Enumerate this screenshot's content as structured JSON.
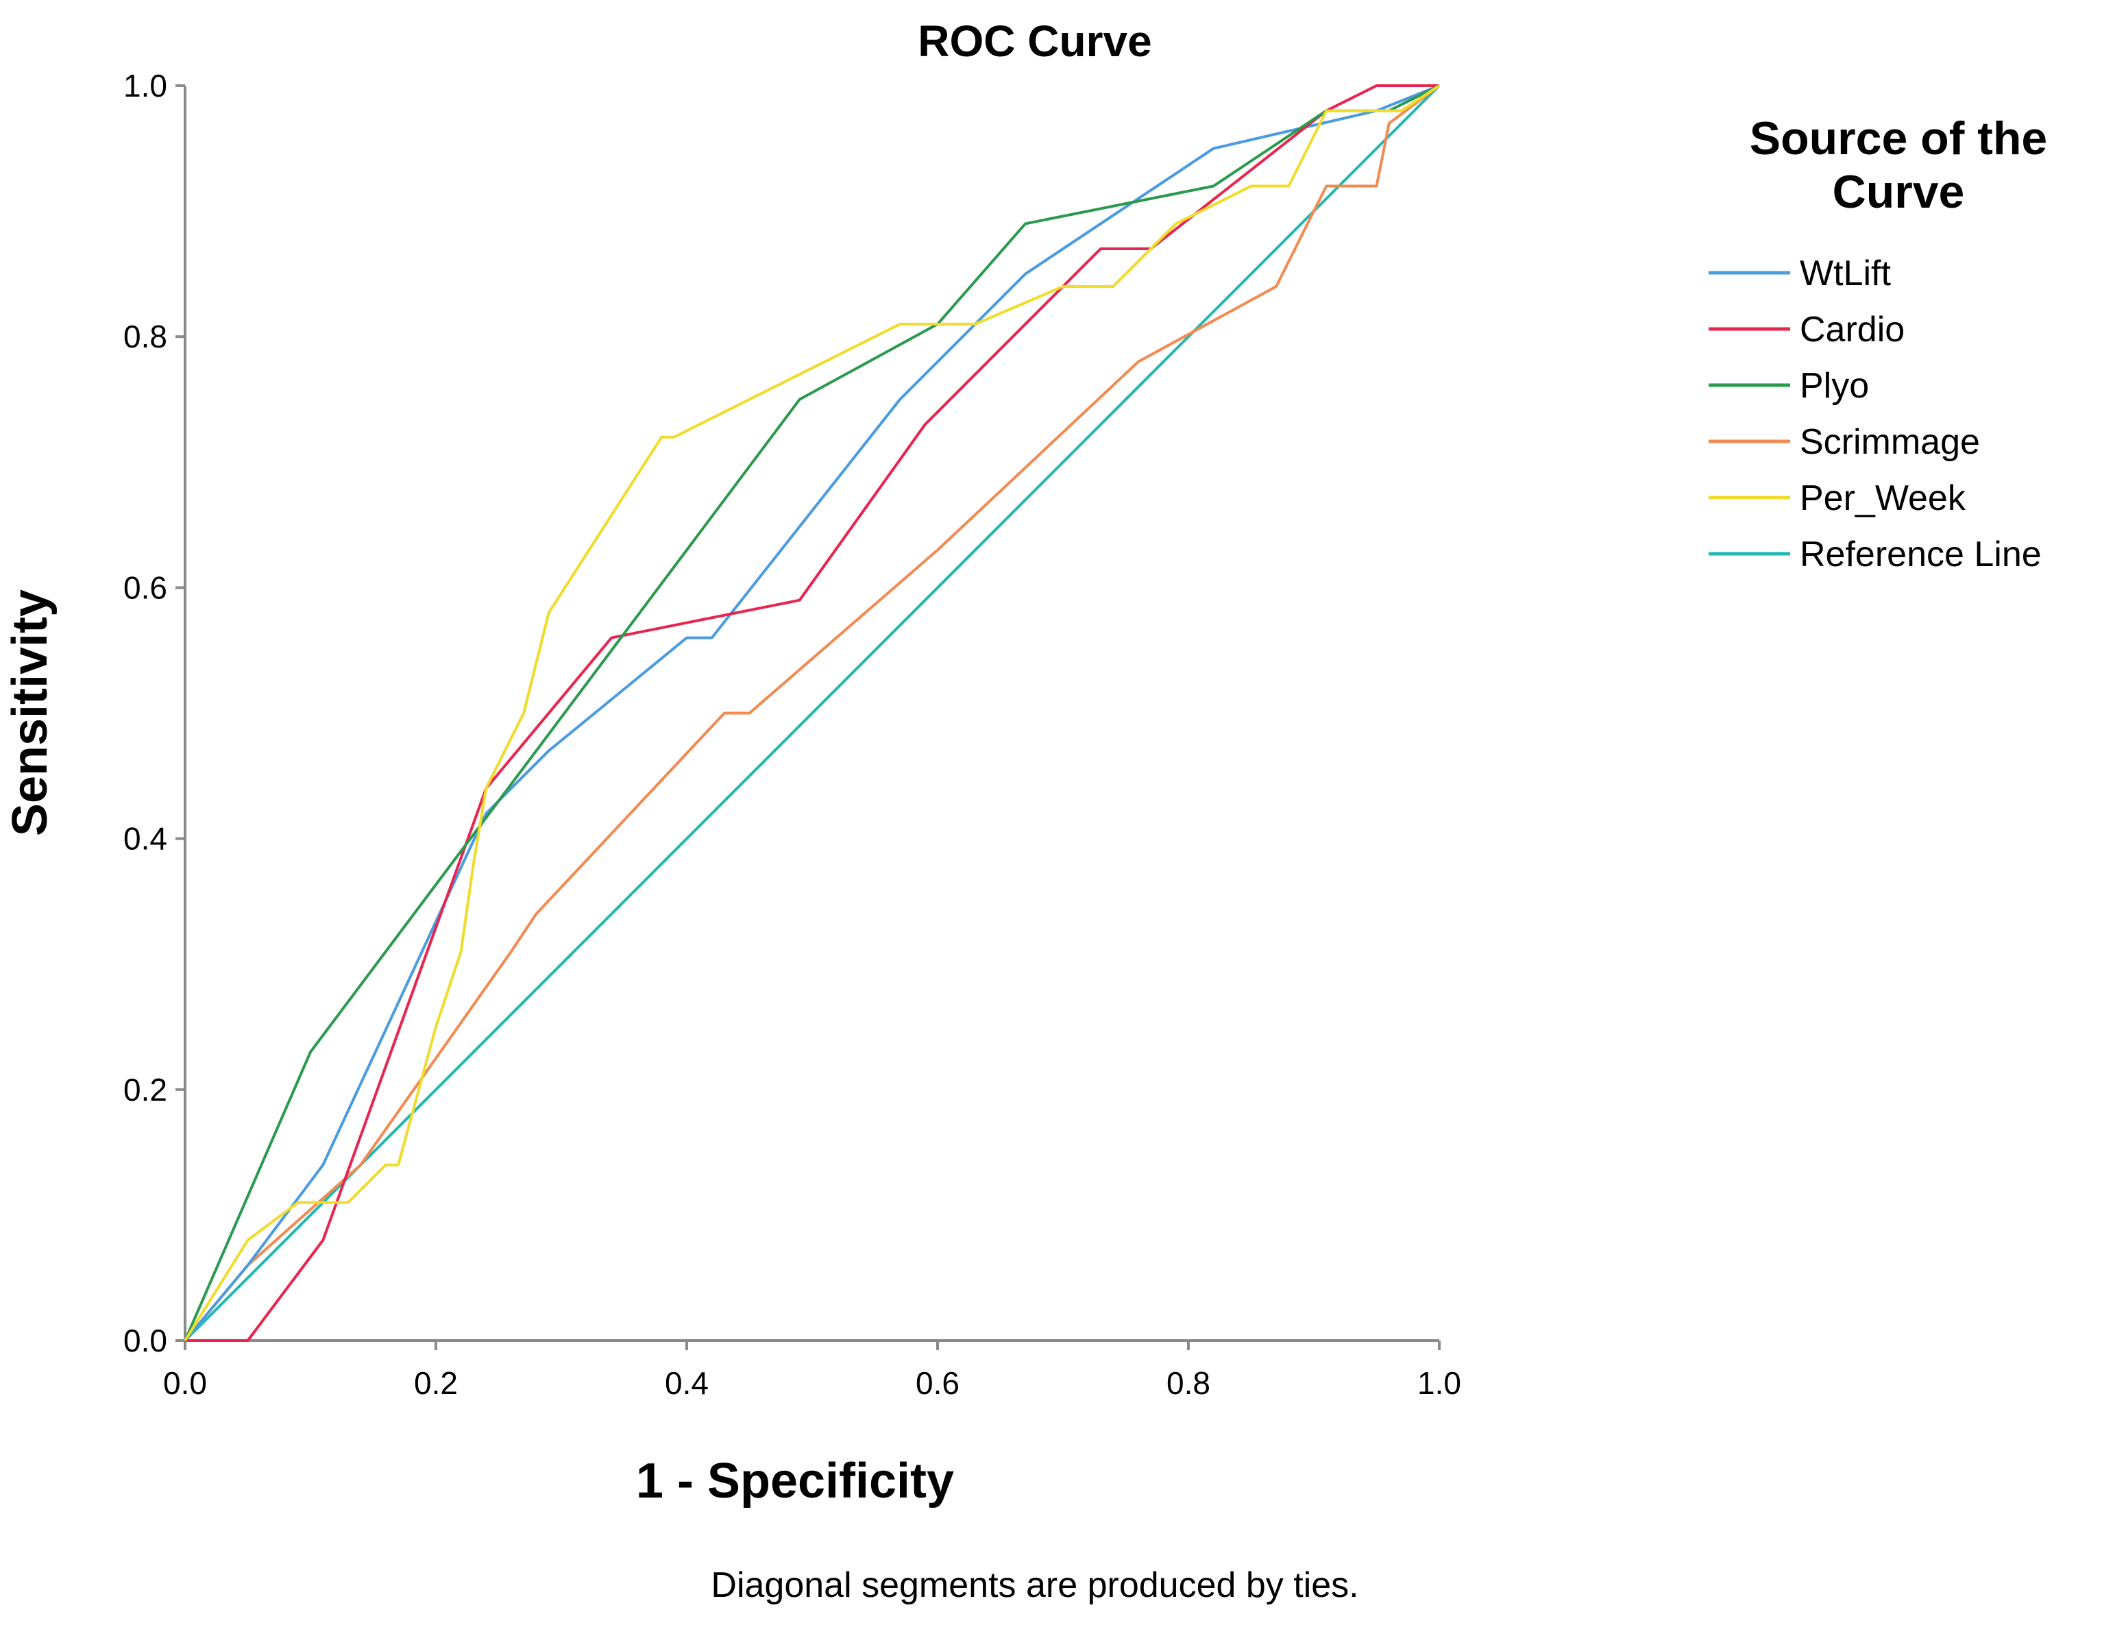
{
  "chart_data": {
    "type": "line",
    "title": "ROC Curve",
    "xlabel": "1 - Specificity",
    "ylabel": "Sensitivity",
    "xlim": [
      0,
      1
    ],
    "ylim": [
      0,
      1
    ],
    "x_ticks": [
      "0.0",
      "0.2",
      "0.4",
      "0.6",
      "0.8",
      "1.0"
    ],
    "y_ticks": [
      "0.0",
      "0.2",
      "0.4",
      "0.6",
      "0.8",
      "1.0"
    ],
    "grid": false,
    "legend_title": "Source of the Curve",
    "legend_position": "right",
    "footnote": "Diagonal segments are produced by ties.",
    "series": [
      {
        "name": "WtLift",
        "color": "#4a9be0",
        "x": [
          0,
          0.05,
          0.11,
          0.24,
          0.29,
          0.4,
          0.42,
          0.57,
          0.67,
          0.82,
          0.95,
          1.0
        ],
        "y": [
          0,
          0.06,
          0.14,
          0.42,
          0.47,
          0.56,
          0.56,
          0.75,
          0.85,
          0.95,
          0.98,
          1.0
        ]
      },
      {
        "name": "Cardio",
        "color": "#e8244f",
        "x": [
          0,
          0.05,
          0.11,
          0.24,
          0.34,
          0.49,
          0.59,
          0.73,
          0.77,
          0.91,
          0.95,
          1.0
        ],
        "y": [
          0,
          0,
          0.08,
          0.44,
          0.56,
          0.59,
          0.73,
          0.87,
          0.87,
          0.98,
          1.0,
          1.0
        ]
      },
      {
        "name": "Plyo",
        "color": "#2a9a4f",
        "x": [
          0,
          0.1,
          0.49,
          0.6,
          0.67,
          0.82,
          0.91,
          0.96,
          1.0
        ],
        "y": [
          0,
          0.23,
          0.75,
          0.81,
          0.89,
          0.92,
          0.98,
          0.98,
          1.0
        ]
      },
      {
        "name": "Scrimmage",
        "color": "#f28a52",
        "x": [
          0,
          0.05,
          0.14,
          0.26,
          0.28,
          0.43,
          0.45,
          0.6,
          0.76,
          0.87,
          0.91,
          0.95,
          0.96,
          1.0
        ],
        "y": [
          0,
          0.06,
          0.14,
          0.31,
          0.34,
          0.5,
          0.5,
          0.63,
          0.78,
          0.84,
          0.92,
          0.92,
          0.97,
          1.0
        ]
      },
      {
        "name": "Per_Week",
        "color": "#f0dc2a",
        "x": [
          0,
          0.05,
          0.09,
          0.12,
          0.13,
          0.16,
          0.17,
          0.2,
          0.22,
          0.23,
          0.24,
          0.27,
          0.29,
          0.38,
          0.39,
          0.57,
          0.63,
          0.7,
          0.74,
          0.79,
          0.85,
          0.88,
          0.91,
          0.96,
          0.97,
          1.0
        ],
        "y": [
          0,
          0.08,
          0.11,
          0.11,
          0.11,
          0.14,
          0.14,
          0.25,
          0.31,
          0.38,
          0.44,
          0.5,
          0.58,
          0.72,
          0.72,
          0.81,
          0.81,
          0.84,
          0.84,
          0.89,
          0.92,
          0.92,
          0.98,
          0.98,
          0.98,
          1.0
        ]
      },
      {
        "name": "Reference Line",
        "color": "#20b8b0",
        "x": [
          0,
          1.0
        ],
        "y": [
          0,
          1.0
        ]
      }
    ]
  }
}
